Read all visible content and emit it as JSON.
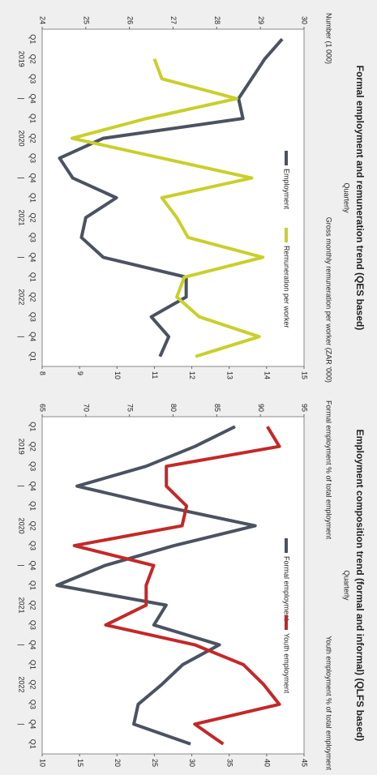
{
  "chart_data": [
    {
      "type": "line",
      "title": "Formal employment and remuneration trend (QES based)",
      "subtitle": "Quarterly",
      "y_label": "Number (1 000)",
      "y2_label": "Gross monthly remuneration per worker (ZAR '000)",
      "categories": [
        "Q1",
        "Q2",
        "Q3",
        "Q4",
        "Q1",
        "Q2",
        "Q3",
        "Q4",
        "Q1",
        "Q2",
        "Q3",
        "Q4",
        "Q1",
        "Q2",
        "Q3",
        "Q4",
        "Q1"
      ],
      "year_labels": [
        "2019",
        "|",
        "2020",
        "|",
        "2021",
        "|",
        "2022",
        "|"
      ],
      "ylim": [
        24,
        30
      ],
      "yticks": [
        24,
        25,
        26,
        27,
        28,
        29,
        30
      ],
      "y2lim": [
        8,
        15
      ],
      "y2ticks": [
        8,
        9,
        10,
        11,
        12,
        13,
        14,
        15
      ],
      "series": [
        {
          "name": "Employment",
          "color": "#4b5260",
          "values": [
            29.5,
            29.1,
            28.8,
            28.5,
            28.6,
            25.4,
            24.4,
            24.7,
            25.7,
            25.0,
            24.9,
            25.4,
            27.3,
            27.3,
            26.5,
            26.9,
            26.7
          ]
        },
        {
          "name": "Remuneration per worker",
          "color": "#c9cf2b",
          "axis": "y2",
          "values": [
            null,
            11.0,
            11.2,
            13.2,
            10.8,
            8.8,
            11.2,
            13.6,
            11.2,
            11.6,
            11.9,
            13.9,
            11.8,
            11.6,
            12.2,
            13.8,
            12.1
          ]
        }
      ]
    },
    {
      "type": "line",
      "title": "Employment composition trend (formal and informal) (QLFS based)",
      "subtitle": "Quarterly",
      "y_label": "Formal employment % of total employment",
      "y2_label": "Youth employment % of total employment",
      "categories": [
        "Q1",
        "Q2",
        "Q3",
        "Q4",
        "Q1",
        "Q2",
        "Q3",
        "Q4",
        "Q1",
        "Q2",
        "Q3",
        "Q4",
        "Q1",
        "Q2",
        "Q3",
        "Q4",
        "Q1"
      ],
      "year_labels": [
        "2019",
        "|",
        "2020",
        "|",
        "2021",
        "|",
        "2022",
        "|"
      ],
      "ylim": [
        65,
        95
      ],
      "yticks": [
        65,
        70,
        75,
        80,
        85,
        90,
        95
      ],
      "y2lim": [
        10,
        45
      ],
      "y2ticks": [
        10,
        15,
        20,
        25,
        30,
        35,
        40,
        45
      ],
      "series": [
        {
          "name": "Formal employment",
          "color": "#4b5260",
          "values": [
            87.1,
            82.5,
            76.9,
            69.0,
            78.7,
            89.4,
            80.1,
            72.2,
            66.7,
            79.2,
            77.8,
            85.3,
            81.1,
            78.7,
            76.0,
            75.5,
            82.0
          ]
        },
        {
          "name": "Youth employment",
          "color": "#c42828",
          "axis": "y2",
          "values": [
            40.1,
            41.7,
            26.6,
            26.6,
            29.3,
            28.7,
            14.3,
            24.9,
            23.9,
            23.9,
            18.5,
            30.4,
            36.9,
            39.6,
            41.7,
            30.4,
            34.2
          ]
        }
      ]
    }
  ]
}
